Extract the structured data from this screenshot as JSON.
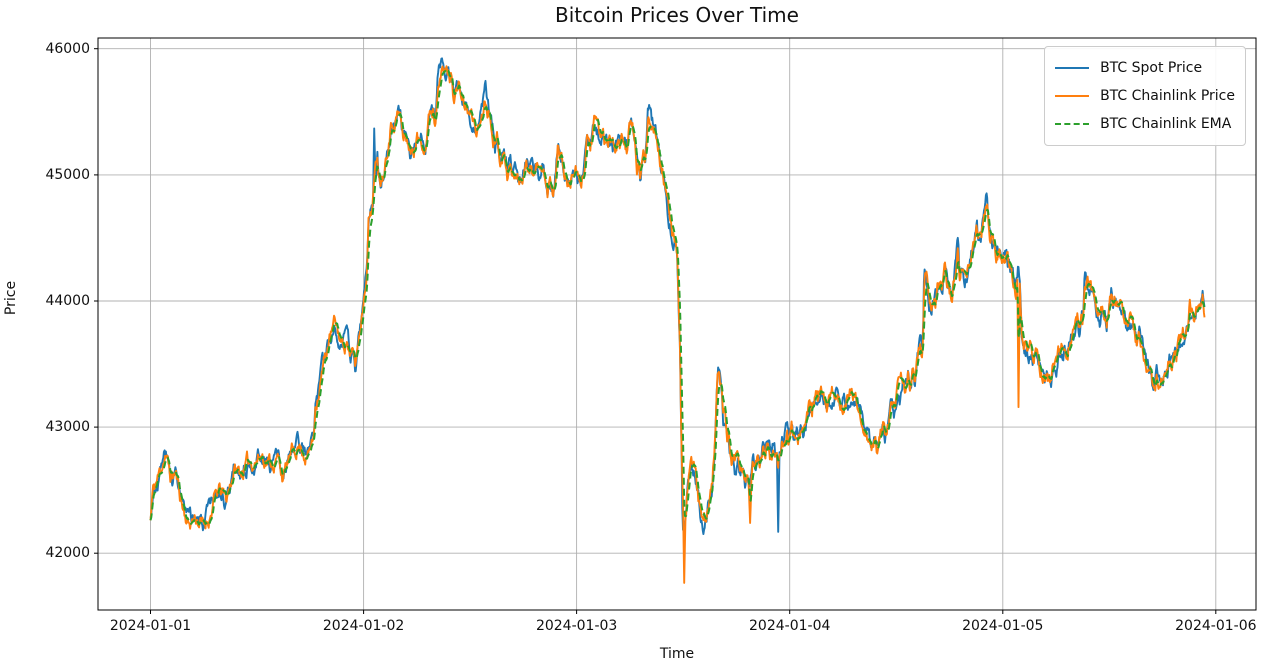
{
  "chart_data": {
    "type": "line",
    "title": "Bitcoin Prices Over Time",
    "xlabel": "Time",
    "ylabel": "Price",
    "grid": true,
    "legend_position": "upper right",
    "x_tick_labels": [
      "2024-01-01",
      "2024-01-02",
      "2024-01-03",
      "2024-01-04",
      "2024-01-05",
      "2024-01-06"
    ],
    "x_tick_positions_days": [
      0,
      1,
      2,
      3,
      4,
      5
    ],
    "y_ticks": [
      42000,
      43000,
      44000,
      45000,
      46000
    ],
    "xlim_days": [
      -0.2465,
      5.1885
    ],
    "ylim": [
      41550,
      46085
    ],
    "series": [
      {
        "name": "BTC Spot Price",
        "color": "#1f77b4",
        "style": "solid"
      },
      {
        "name": "BTC Chainlink Price",
        "color": "#ff7f0e",
        "style": "solid"
      },
      {
        "name": "BTC Chainlink EMA",
        "color": "#2ca02c",
        "style": "dashed"
      }
    ],
    "axis_colors": {
      "grid": "#b0b0b0",
      "spine": "#000000",
      "text": "#111111"
    },
    "base_anchors": [
      [
        0.0,
        42260
      ],
      [
        0.01,
        42480
      ],
      [
        0.04,
        42620
      ],
      [
        0.07,
        42800
      ],
      [
        0.094,
        42600
      ],
      [
        0.117,
        42640
      ],
      [
        0.15,
        42380
      ],
      [
        0.178,
        42230
      ],
      [
        0.211,
        42290
      ],
      [
        0.249,
        42210
      ],
      [
        0.281,
        42310
      ],
      [
        0.305,
        42450
      ],
      [
        0.328,
        42490
      ],
      [
        0.356,
        42420
      ],
      [
        0.389,
        42660
      ],
      [
        0.422,
        42640
      ],
      [
        0.469,
        42725
      ],
      [
        0.525,
        42780
      ],
      [
        0.563,
        42720
      ],
      [
        0.6,
        42740
      ],
      [
        0.624,
        42605
      ],
      [
        0.647,
        42720
      ],
      [
        0.689,
        42860
      ],
      [
        0.717,
        42820
      ],
      [
        0.736,
        42765
      ],
      [
        0.764,
        42900
      ],
      [
        0.774,
        43190
      ],
      [
        0.835,
        43665
      ],
      [
        0.867,
        43824
      ],
      [
        0.9,
        43650
      ],
      [
        0.924,
        43705
      ],
      [
        0.938,
        43516
      ],
      [
        0.952,
        43586
      ],
      [
        0.961,
        43476
      ],
      [
        0.999,
        44006
      ],
      [
        1.018,
        44347
      ],
      [
        1.022,
        44640
      ],
      [
        1.041,
        44774
      ],
      [
        1.065,
        45194
      ],
      [
        1.069,
        45036
      ],
      [
        1.088,
        44996
      ],
      [
        1.111,
        45249
      ],
      [
        1.125,
        45408
      ],
      [
        1.163,
        45495
      ],
      [
        1.172,
        45471
      ],
      [
        1.186,
        45273
      ],
      [
        1.205,
        45297
      ],
      [
        1.219,
        45178
      ],
      [
        1.233,
        45194
      ],
      [
        1.252,
        45297
      ],
      [
        1.257,
        45257
      ],
      [
        1.28,
        45289
      ],
      [
        1.29,
        45249
      ],
      [
        1.313,
        45535
      ],
      [
        1.322,
        45495
      ],
      [
        1.327,
        45567
      ],
      [
        1.336,
        45408
      ],
      [
        1.35,
        45828
      ],
      [
        1.36,
        45868
      ],
      [
        1.383,
        45804
      ],
      [
        1.393,
        45828
      ],
      [
        1.407,
        45764
      ],
      [
        1.416,
        45788
      ],
      [
        1.421,
        45646
      ],
      [
        1.44,
        45694
      ],
      [
        1.454,
        45654
      ],
      [
        1.468,
        45567
      ],
      [
        1.487,
        45511
      ],
      [
        1.501,
        45471
      ],
      [
        1.515,
        45432
      ],
      [
        1.533,
        45352
      ],
      [
        1.547,
        45420
      ],
      [
        1.56,
        45520
      ],
      [
        1.571,
        45640
      ],
      [
        1.58,
        45560
      ],
      [
        1.594,
        45490
      ],
      [
        1.604,
        45420
      ],
      [
        1.618,
        45220
      ],
      [
        1.627,
        45300
      ],
      [
        1.641,
        45140
      ],
      [
        1.655,
        45210
      ],
      [
        1.674,
        44996
      ],
      [
        1.688,
        45075
      ],
      [
        1.702,
        44972
      ],
      [
        1.712,
        45051
      ],
      [
        1.726,
        44941
      ],
      [
        1.744,
        45012
      ],
      [
        1.758,
        45115
      ],
      [
        1.772,
        45051
      ],
      [
        1.786,
        45115
      ],
      [
        1.8,
        44996
      ],
      [
        1.815,
        45075
      ],
      [
        1.829,
        44996
      ],
      [
        1.843,
        45075
      ],
      [
        1.862,
        44822
      ],
      [
        1.876,
        44957
      ],
      [
        1.89,
        44877
      ],
      [
        1.908,
        45150
      ],
      [
        1.913,
        45258
      ],
      [
        1.932,
        45139
      ],
      [
        1.946,
        44996
      ],
      [
        1.969,
        44901
      ],
      [
        1.983,
        45036
      ],
      [
        2.002,
        45012
      ],
      [
        2.016,
        44862
      ],
      [
        2.03,
        44957
      ],
      [
        2.049,
        45337
      ],
      [
        2.063,
        45218
      ],
      [
        2.087,
        45416
      ],
      [
        2.096,
        45352
      ],
      [
        2.11,
        45297
      ],
      [
        2.124,
        45313
      ],
      [
        2.143,
        45218
      ],
      [
        2.157,
        45289
      ],
      [
        2.171,
        45218
      ],
      [
        2.19,
        45273
      ],
      [
        2.204,
        45234
      ],
      [
        2.218,
        45297
      ],
      [
        2.237,
        45234
      ],
      [
        2.251,
        45368
      ],
      [
        2.265,
        45337
      ],
      [
        2.284,
        45036
      ],
      [
        2.288,
        45091
      ],
      [
        2.298,
        44996
      ],
      [
        2.312,
        45139
      ],
      [
        2.321,
        45091
      ],
      [
        2.335,
        45471
      ],
      [
        2.345,
        45495
      ],
      [
        2.359,
        45376
      ],
      [
        2.368,
        45416
      ],
      [
        2.382,
        45297
      ],
      [
        2.392,
        45139
      ],
      [
        2.401,
        45091
      ],
      [
        2.415,
        44900
      ],
      [
        2.429,
        44700
      ],
      [
        2.448,
        44560
      ],
      [
        2.462,
        44536
      ],
      [
        2.471,
        44426
      ],
      [
        2.485,
        43713
      ],
      [
        2.492,
        42900
      ],
      [
        2.5,
        42350
      ],
      [
        2.513,
        42300
      ],
      [
        2.523,
        42580
      ],
      [
        2.537,
        42750
      ],
      [
        2.556,
        42604
      ],
      [
        2.565,
        42501
      ],
      [
        2.584,
        42300
      ],
      [
        2.593,
        42185
      ],
      [
        2.612,
        42343
      ],
      [
        2.617,
        42398
      ],
      [
        2.635,
        42501
      ],
      [
        2.649,
        42900
      ],
      [
        2.663,
        43397
      ],
      [
        2.673,
        43300
      ],
      [
        2.682,
        43214
      ],
      [
        2.687,
        43032
      ],
      [
        2.696,
        43080
      ],
      [
        2.706,
        42882
      ],
      [
        2.71,
        42937
      ],
      [
        2.729,
        42739
      ],
      [
        2.734,
        42763
      ],
      [
        2.743,
        42675
      ],
      [
        2.757,
        42723
      ],
      [
        2.767,
        42604
      ],
      [
        2.781,
        42660
      ],
      [
        2.79,
        42557
      ],
      [
        2.804,
        42604
      ],
      [
        2.814,
        42501
      ],
      [
        2.828,
        42715
      ],
      [
        2.837,
        42636
      ],
      [
        2.851,
        42779
      ],
      [
        2.861,
        42699
      ],
      [
        2.875,
        42834
      ],
      [
        2.884,
        42755
      ],
      [
        2.898,
        42858
      ],
      [
        2.908,
        42779
      ],
      [
        2.922,
        42873
      ],
      [
        2.931,
        42802
      ],
      [
        2.94,
        42715
      ],
      [
        2.945,
        42600
      ],
      [
        2.964,
        42882
      ],
      [
        2.968,
        42818
      ],
      [
        2.987,
        42953
      ],
      [
        2.992,
        42882
      ],
      [
        3.01,
        43000
      ],
      [
        3.015,
        42937
      ],
      [
        3.034,
        43032
      ],
      [
        3.038,
        42977
      ],
      [
        3.057,
        43040
      ],
      [
        3.062,
        43000
      ],
      [
        3.081,
        43080
      ],
      [
        3.095,
        43159
      ],
      [
        3.104,
        43119
      ],
      [
        3.109,
        43214
      ],
      [
        3.128,
        43238
      ],
      [
        3.132,
        43198
      ],
      [
        3.142,
        43254
      ],
      [
        3.156,
        43214
      ],
      [
        3.165,
        43175
      ],
      [
        3.175,
        43111
      ],
      [
        3.198,
        43238
      ],
      [
        3.222,
        43278
      ],
      [
        3.245,
        43198
      ],
      [
        3.268,
        43238
      ],
      [
        3.292,
        43254
      ],
      [
        3.315,
        43190
      ],
      [
        3.329,
        43111
      ],
      [
        3.343,
        43040
      ],
      [
        3.362,
        42921
      ],
      [
        3.376,
        42858
      ],
      [
        3.386,
        42794
      ],
      [
        3.4,
        42873
      ],
      [
        3.409,
        42802
      ],
      [
        3.423,
        42953
      ],
      [
        3.437,
        43040
      ],
      [
        3.447,
        42961
      ],
      [
        3.461,
        43080
      ],
      [
        3.48,
        43175
      ],
      [
        3.494,
        43111
      ],
      [
        3.508,
        43309
      ],
      [
        3.517,
        43254
      ],
      [
        3.531,
        43373
      ],
      [
        3.541,
        43317
      ],
      [
        3.555,
        43412
      ],
      [
        3.564,
        43357
      ],
      [
        3.578,
        43452
      ],
      [
        3.587,
        43349
      ],
      [
        3.597,
        43515
      ],
      [
        3.611,
        43666
      ],
      [
        3.62,
        43571
      ],
      [
        3.625,
        43753
      ],
      [
        3.634,
        44244
      ],
      [
        3.644,
        44165
      ],
      [
        3.648,
        44046
      ],
      [
        3.658,
        43927
      ],
      [
        3.667,
        43872
      ],
      [
        3.672,
        43991
      ],
      [
        3.69,
        44030
      ],
      [
        3.695,
        44101
      ],
      [
        3.704,
        44141
      ],
      [
        3.714,
        44062
      ],
      [
        3.728,
        44228
      ],
      [
        3.737,
        44165
      ],
      [
        3.751,
        44086
      ],
      [
        3.761,
        44022
      ],
      [
        3.765,
        44062
      ],
      [
        3.775,
        44244
      ],
      [
        3.789,
        44481
      ],
      [
        3.798,
        44150
      ],
      [
        3.808,
        44268
      ],
      [
        3.822,
        44165
      ],
      [
        3.836,
        44240
      ],
      [
        3.845,
        44300
      ],
      [
        3.859,
        44426
      ],
      [
        3.878,
        44600
      ],
      [
        3.883,
        44497
      ],
      [
        3.902,
        44536
      ],
      [
        3.906,
        44623
      ],
      [
        3.92,
        44750
      ],
      [
        3.925,
        44800
      ],
      [
        3.93,
        44695
      ],
      [
        3.939,
        44560
      ],
      [
        3.948,
        44481
      ],
      [
        3.962,
        44418
      ],
      [
        3.972,
        44362
      ],
      [
        3.986,
        44402
      ],
      [
        3.995,
        44339
      ],
      [
        4.009,
        44299
      ],
      [
        4.018,
        44362
      ],
      [
        4.033,
        44244
      ],
      [
        4.042,
        44188
      ],
      [
        4.056,
        44141
      ],
      [
        4.066,
        44086
      ],
      [
        4.07,
        44244
      ],
      [
        4.08,
        44165
      ],
      [
        4.089,
        43729
      ],
      [
        4.094,
        43690
      ],
      [
        4.112,
        43611
      ],
      [
        4.117,
        43555
      ],
      [
        4.136,
        43595
      ],
      [
        4.141,
        43532
      ],
      [
        4.159,
        43587
      ],
      [
        4.173,
        43508
      ],
      [
        4.187,
        43429
      ],
      [
        4.197,
        43357
      ],
      [
        4.206,
        43429
      ],
      [
        4.22,
        43349
      ],
      [
        4.23,
        43397
      ],
      [
        4.234,
        43476
      ],
      [
        4.253,
        43429
      ],
      [
        4.258,
        43547
      ],
      [
        4.277,
        43611
      ],
      [
        4.281,
        43555
      ],
      [
        4.291,
        43634
      ],
      [
        4.305,
        43595
      ],
      [
        4.314,
        43690
      ],
      [
        4.328,
        43769
      ],
      [
        4.338,
        43714
      ],
      [
        4.352,
        43809
      ],
      [
        4.361,
        43769
      ],
      [
        4.371,
        43903
      ],
      [
        4.375,
        43848
      ],
      [
        4.385,
        44150
      ],
      [
        4.399,
        44141
      ],
      [
        4.408,
        44070
      ],
      [
        4.422,
        44046
      ],
      [
        4.441,
        43951
      ],
      [
        4.455,
        43872
      ],
      [
        4.469,
        43927
      ],
      [
        4.488,
        43824
      ],
      [
        4.492,
        43903
      ],
      [
        4.511,
        44070
      ],
      [
        4.516,
        44006
      ],
      [
        4.525,
        44046
      ],
      [
        4.539,
        43951
      ],
      [
        4.549,
        44022
      ],
      [
        4.558,
        43903
      ],
      [
        4.572,
        43848
      ],
      [
        4.581,
        43793
      ],
      [
        4.596,
        43864
      ],
      [
        4.605,
        43809
      ],
      [
        4.619,
        43745
      ],
      [
        4.628,
        43674
      ],
      [
        4.642,
        43745
      ],
      [
        4.652,
        43634
      ],
      [
        4.666,
        43555
      ],
      [
        4.675,
        43476
      ],
      [
        4.69,
        43429
      ],
      [
        4.699,
        43476
      ],
      [
        4.703,
        43373
      ],
      [
        4.722,
        43437
      ],
      [
        4.727,
        43349
      ],
      [
        4.736,
        43278
      ],
      [
        4.75,
        43373
      ],
      [
        4.76,
        43429
      ],
      [
        4.769,
        43476
      ],
      [
        4.783,
        43555
      ],
      [
        4.792,
        43508
      ],
      [
        4.806,
        43634
      ],
      [
        4.816,
        43587
      ],
      [
        4.82,
        43700
      ],
      [
        4.839,
        43626
      ],
      [
        4.844,
        43674
      ],
      [
        4.862,
        43769
      ],
      [
        4.867,
        43714
      ],
      [
        4.877,
        43850
      ],
      [
        4.886,
        43824
      ],
      [
        4.891,
        43903
      ],
      [
        4.9,
        43848
      ],
      [
        4.914,
        43967
      ],
      [
        4.924,
        43911
      ],
      [
        4.933,
        44022
      ],
      [
        4.938,
        44062
      ],
      [
        4.947,
        43960
      ]
    ],
    "series_spikes": {
      "spot": [
        [
          1.05,
          45368
        ],
        [
          1.571,
          45745
        ],
        [
          2.345,
          45530
        ],
        [
          2.5,
          42185
        ],
        [
          2.945,
          42170
        ],
        [
          3.634,
          44250
        ],
        [
          3.789,
          44500
        ],
        [
          3.925,
          44853
        ],
        [
          4.385,
          44228
        ]
      ],
      "chainlink": [
        [
          2.504,
          41765
        ],
        [
          2.663,
          43430
        ],
        [
          2.814,
          42240
        ],
        [
          4.075,
          43159
        ],
        [
          4.877,
          44010
        ]
      ]
    },
    "noise": {
      "amplitude": 90,
      "spot_seed": 3,
      "chainlink_seed": 11
    },
    "ema_alpha": 0.3,
    "sample_step_days": 0.003
  }
}
